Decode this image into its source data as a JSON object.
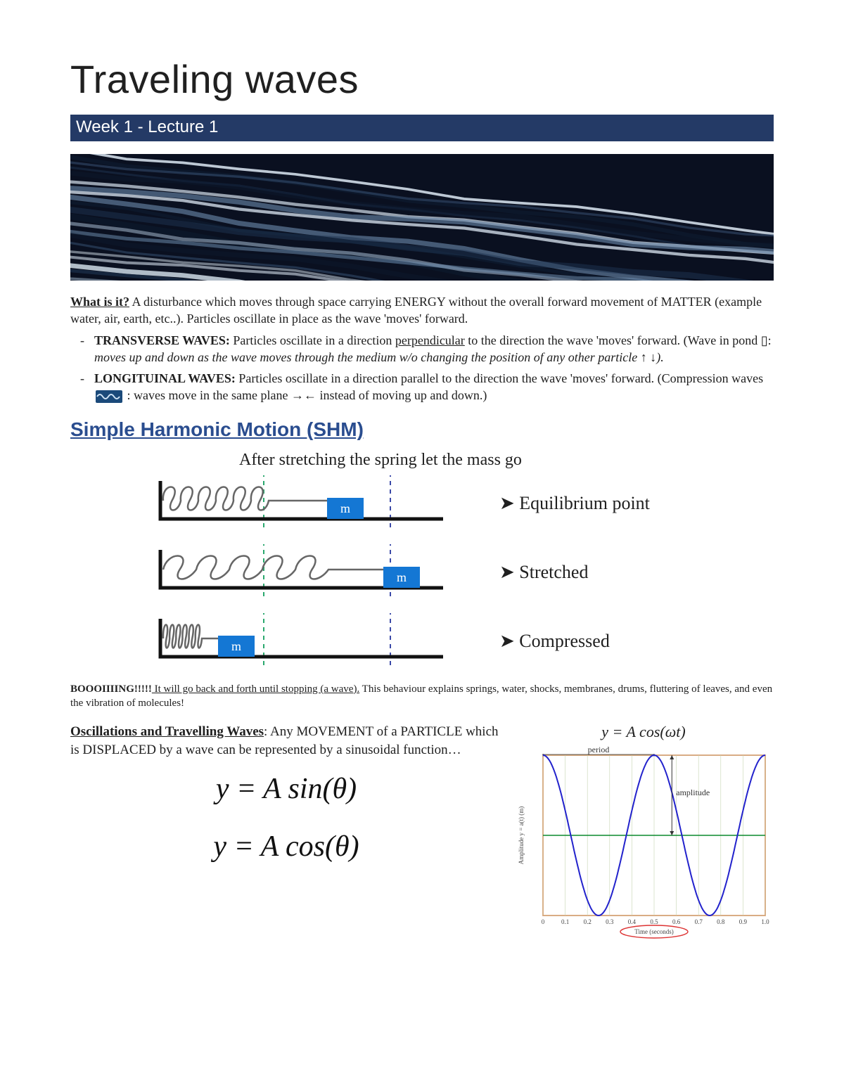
{
  "title": "Traveling waves",
  "subtitle": "Week 1 - Lecture 1",
  "banner": {
    "bg": "#0a1020",
    "stroke_colors": [
      "#0d1a2e",
      "#1e3350",
      "#3a5578",
      "#6a88aa",
      "#a8bdd2",
      "#d8e4ef"
    ],
    "stroke_width": 6
  },
  "intro": {
    "lead": "What is it?",
    "body": " A disturbance which moves through space carrying ENERGY without the overall forward movement of MATTER (example water, air, earth, etc..). Particles oscillate in place as the wave 'moves' forward."
  },
  "defs": [
    {
      "term": "TRANSVERSE WAVES:",
      "body_pre": " Particles oscillate in a direction ",
      "underlined": "perpendicular",
      "body_mid": " to the direction the wave 'moves' forward. (Wave in pond ▯: ",
      "italic": "moves up and down as the wave moves through the medium w/o changing the position of any other particle ",
      "arrows": "↑ ↓",
      "body_end": ")."
    },
    {
      "term": "LONGITUINAL WAVES:",
      "body_pre": " Particles oscillate in a direction parallel to the direction the wave 'moves' forward. (Compression waves ",
      "icon": true,
      "body_mid": " : waves move in the same plane ",
      "arrows": "→←",
      "body_end": " instead of moving up and down.)"
    }
  ],
  "section": "Simple Harmonic Motion (SHM)",
  "shm": {
    "caption": "After stretching the spring let the mass go",
    "track_color": "#111111",
    "spring_color": "#666666",
    "mass_color": "#1477d4",
    "mass_text_color": "#ffffff",
    "guide_left_color": "#2aa86e",
    "guide_right_color": "#3b4aa8",
    "guide_dash": "6 6",
    "mass_label": "m",
    "rows": [
      {
        "label": "Equilibrium point",
        "mass_x": 255,
        "coils": 6,
        "coil_width": 150
      },
      {
        "label": "Stretched",
        "mass_x": 335,
        "coils": 5,
        "coil_width": 235
      },
      {
        "label": "Compressed",
        "mass_x": 100,
        "coils": 6,
        "coil_width": 55
      }
    ],
    "guide_left_x": 165,
    "guide_right_x": 345
  },
  "boooing": {
    "shout": "BOOOIIIING!!!!!",
    "underlined": " It will go back and forth until stopping (a wave).",
    "rest": " This behaviour explains springs, water, shocks, membranes, drums, fluttering of leaves, and even the vibration of molecules!"
  },
  "osc": {
    "lead": "Oscillations and Travelling Waves",
    "body": ": Any MOVEMENT of a PARTICLE which is DISPLACED by a wave can be represented by a sinusoidal function…"
  },
  "formulas": {
    "sin": "y = A sin(θ)",
    "cos": "y = A cos(θ)"
  },
  "chart": {
    "title": "y = A cos(ωt)",
    "type": "line",
    "xlim": [
      0,
      1.0
    ],
    "ylim": [
      -1,
      1
    ],
    "xtick_step": 0.1,
    "xticks": [
      "0",
      "0.1",
      "0.2",
      "0.3",
      "0.4",
      "0.5",
      "0.6",
      "0.7",
      "0.8",
      "0.9",
      "1.0"
    ],
    "period": 0.5,
    "amplitude": 1,
    "line_color": "#2222cc",
    "axis_color": "#d07030",
    "zero_line_color": "#0b8a2f",
    "grid_color": "#c5d4b0",
    "background_color": "#ffffff",
    "line_width": 2,
    "label_period": "period",
    "label_amplitude": "amplitude",
    "ylabel": "Amplitude y = a(t) (m)",
    "xlabel": "Time (seconds)",
    "xlabel_highlight": "#d33",
    "label_fontsize": 9
  }
}
